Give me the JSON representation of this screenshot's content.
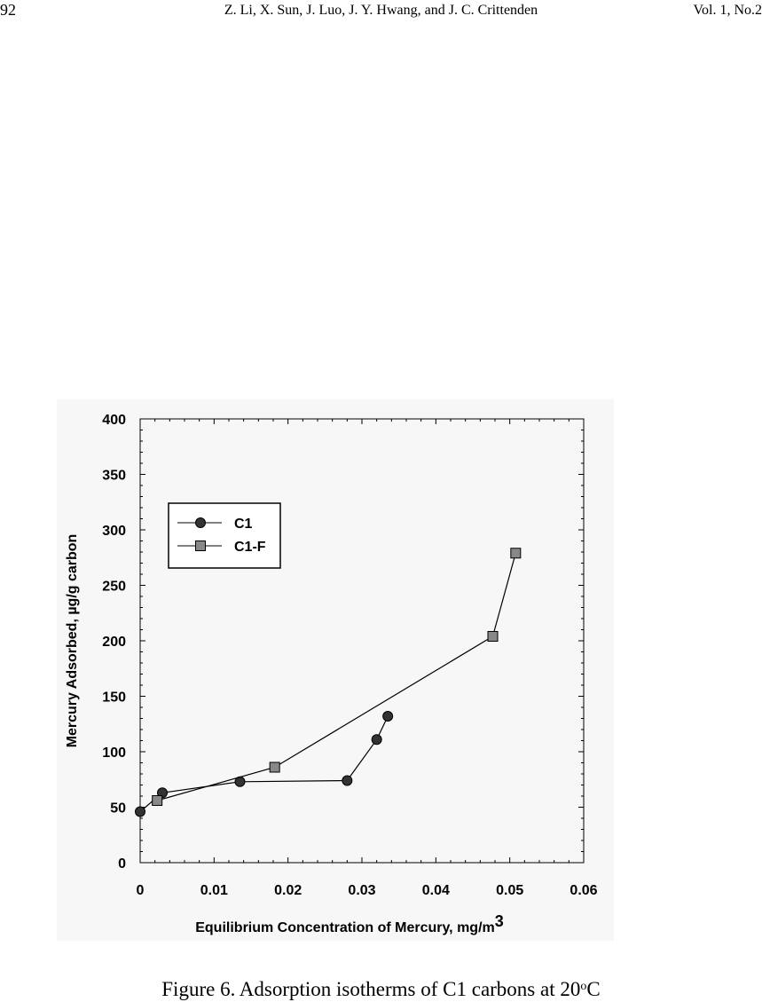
{
  "header": {
    "page_number": "92",
    "authors": "Z. Li, X. Sun, J. Luo,  J. Y. Hwang, and J. C. Crittenden",
    "volume": "Vol. 1, No.2"
  },
  "caption": {
    "text": "Figure 6. Adsorption isotherms of C1 carbons at 20",
    "superscript": "o",
    "unit": "C"
  },
  "chart_data": {
    "type": "line",
    "title": "",
    "xlabel": "Equilibrium Concentration of Mercury, mg/m",
    "xlabel_superscript": "3",
    "ylabel": "Mercury Adsorbed, µg/g carbon",
    "xlim": [
      0,
      0.06
    ],
    "ylim": [
      0,
      400
    ],
    "xticks": [
      0,
      0.01,
      0.02,
      0.03,
      0.04,
      0.05,
      0.06
    ],
    "xtick_labels": [
      "0",
      "0.01",
      "0.02",
      "0.03",
      "0.04",
      "0.05",
      "0.06"
    ],
    "yticks": [
      0,
      50,
      100,
      150,
      200,
      250,
      300,
      350,
      400
    ],
    "ytick_labels": [
      "0",
      "50",
      "100",
      "150",
      "200",
      "250",
      "300",
      "350",
      "400"
    ],
    "grid": false,
    "legend_position": "top-left",
    "series": [
      {
        "name": "C1",
        "marker": "circle",
        "color": "#333333",
        "x": [
          0.0,
          0.003,
          0.0135,
          0.028,
          0.032,
          0.0335
        ],
        "y": [
          46,
          63,
          73,
          74,
          111,
          132
        ]
      },
      {
        "name": "C1-F",
        "marker": "square",
        "color": "#888888",
        "x": [
          0.0023,
          0.0182,
          0.0477,
          0.0508
        ],
        "y": [
          56,
          86,
          204,
          279
        ]
      }
    ]
  }
}
